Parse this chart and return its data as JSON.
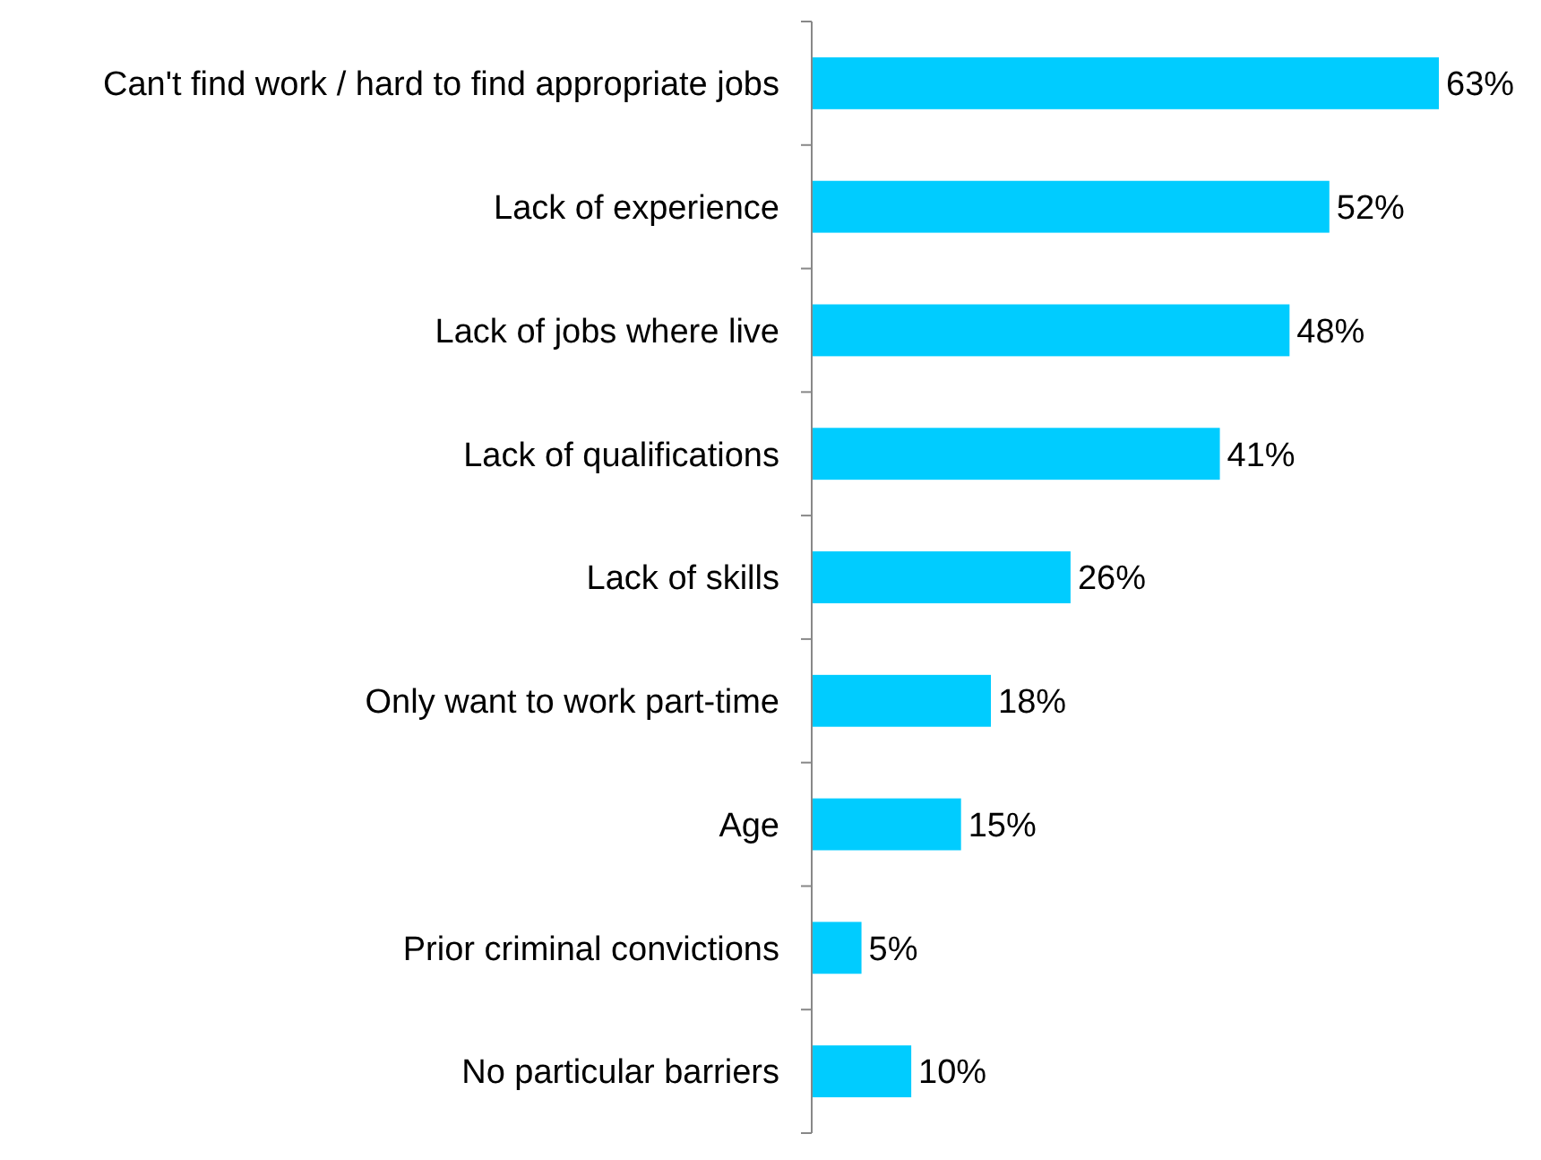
{
  "chart_data": {
    "type": "bar",
    "orientation": "horizontal",
    "categories": [
      "Can't find work / hard to find appropriate jobs",
      "Lack of experience",
      "Lack of jobs where live",
      "Lack of qualifications",
      "Lack of skills",
      "Only want to work part-time",
      "Age",
      "Prior criminal convictions",
      "No particular barriers"
    ],
    "values": [
      63,
      52,
      48,
      41,
      26,
      18,
      15,
      5,
      10
    ],
    "value_labels": [
      "63%",
      "52%",
      "48%",
      "41%",
      "26%",
      "18%",
      "15%",
      "5%",
      "10%"
    ],
    "color": "#00ccff"
  }
}
